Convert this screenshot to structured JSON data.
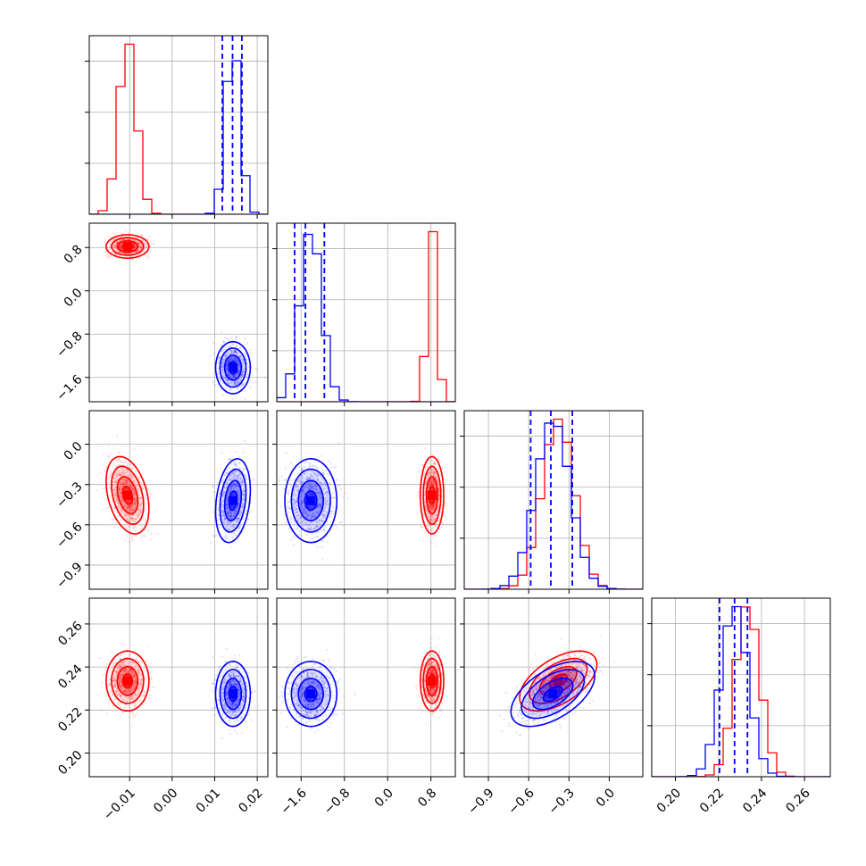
{
  "chart_data": {
    "type": "corner",
    "params": [
      {
        "range": [
          -0.0195,
          0.0225
        ],
        "ticks": [
          -0.01,
          0.0,
          0.01,
          0.02
        ],
        "tick_labels": [
          "−0.01",
          "0.00",
          "0.01",
          "0.02"
        ]
      },
      {
        "range": [
          -2.05,
          1.25
        ],
        "ticks": [
          -1.6,
          -0.8,
          0.0,
          0.8
        ],
        "tick_labels": [
          "−1.6",
          "−0.8",
          "0.0",
          "0.8"
        ]
      },
      {
        "range": [
          -1.08,
          0.25
        ],
        "ticks": [
          -0.9,
          -0.6,
          -0.3,
          0.0
        ],
        "tick_labels": [
          "−0.9",
          "−0.6",
          "−0.3",
          "0.0"
        ]
      },
      {
        "range": [
          0.189,
          0.272
        ],
        "ticks": [
          0.2,
          0.22,
          0.24,
          0.26
        ],
        "tick_labels": [
          "0.20",
          "0.22",
          "0.24",
          "0.26"
        ]
      }
    ],
    "series": [
      {
        "color": "#ff0000",
        "mean": [
          -0.0105,
          0.82,
          -0.38,
          0.2335
        ],
        "sd": [
          0.0021,
          0.09,
          0.12,
          0.0058
        ],
        "corr": [
          [
            0,
            2,
            -0.35
          ],
          [
            2,
            3,
            0.55
          ]
        ]
      },
      {
        "color": "#0000ff",
        "mean": [
          0.0143,
          -1.42,
          -0.42,
          0.2275
        ],
        "sd": [
          0.0017,
          0.2,
          0.13,
          0.0063
        ],
        "corr": [
          [
            0,
            2,
            0.25
          ],
          [
            2,
            3,
            0.55
          ]
        ]
      }
    ],
    "quantiles": [
      [
        0.0118,
        0.0142,
        0.0164
      ],
      [
        -1.72,
        -1.52,
        -1.17
      ],
      [
        -0.585,
        -0.435,
        -0.275
      ],
      [
        0.2205,
        0.2275,
        0.2335
      ]
    ],
    "quantile_color": "#0000ff",
    "grid": true
  }
}
